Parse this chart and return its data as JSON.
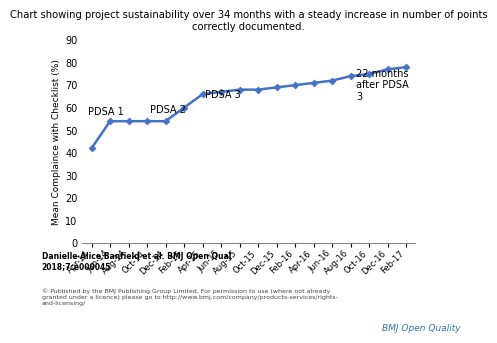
{
  "title": "Chart showing project sustainability over 34 months with a steady increase in number of points\ncorrectly documented.",
  "ylabel": "Mean Complaince with Checklist (%)",
  "x_labels": [
    "Apr-14",
    "Jun-14",
    "Aug-14",
    "Oct-14",
    "Dec-14",
    "Feb-15",
    "Apr-15",
    "Jun-15",
    "Aug-15",
    "Oct-15",
    "Dec-15",
    "Feb-16",
    "Apr-16",
    "Jun-16",
    "Aug-16",
    "Oct-16",
    "Dec-16",
    "Feb-17"
  ],
  "y_values": [
    42,
    54,
    54,
    54,
    54,
    60,
    66,
    67,
    68,
    68,
    69,
    70,
    71,
    72,
    74,
    75,
    77,
    78
  ],
  "line_color": "#4472C4",
  "marker_color": "#4472C4",
  "ylim": [
    0,
    90
  ],
  "yticks": [
    0,
    10,
    20,
    30,
    40,
    50,
    60,
    70,
    80,
    90
  ],
  "footnote1": "Danielle Alice Banfield et al. BMJ Open Qual",
  "footnote2": "2018;7:e000045",
  "footnote3": "© Published by the BMJ Publishing Group Limited. For permission to use (where not already\ngranted under a licence) please go to http://www.bmj.com/company/products-services/rights-\nand-licensing/",
  "branding": "BMJ Open Quality",
  "plot_bg": "#ffffff",
  "fig_bg": "#ffffff"
}
